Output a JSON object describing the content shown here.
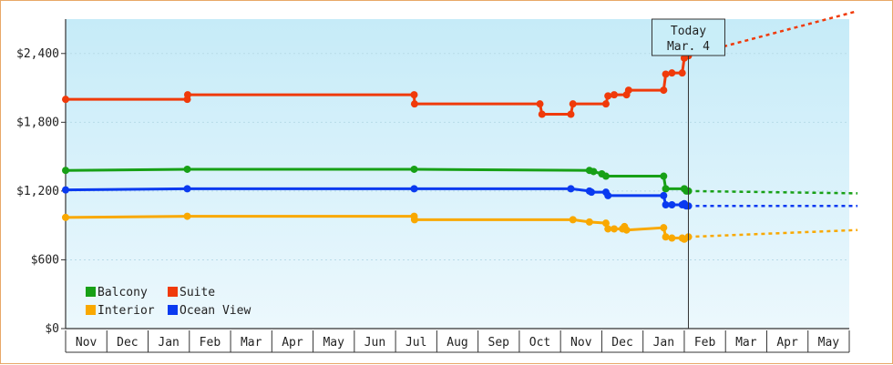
{
  "chart_data": {
    "type": "line",
    "y_ticks": [
      "$0",
      "$600",
      "$1,200",
      "$1,800",
      "$2,400"
    ],
    "ylim": [
      0,
      2700
    ],
    "months": [
      "Nov",
      "Dec",
      "Jan",
      "Feb",
      "Mar",
      "Apr",
      "May",
      "Jun",
      "Jul",
      "Aug",
      "Sep",
      "Oct",
      "Nov",
      "Dec",
      "Jan",
      "Feb",
      "Mar",
      "Apr",
      "May"
    ],
    "x_range": [
      0,
      19
    ],
    "today": {
      "line1": "Today",
      "line2": "Mar. 4",
      "x": 15.1
    },
    "legend": {
      "placement": "bottom-left"
    },
    "series": [
      {
        "name": "Balcony",
        "color": "#17a016",
        "points": [
          [
            0,
            1380
          ],
          [
            2.95,
            1390
          ],
          [
            8.45,
            1390
          ],
          [
            12.7,
            1380
          ],
          [
            12.8,
            1370
          ],
          [
            13.0,
            1350
          ],
          [
            13.1,
            1330
          ],
          [
            14.5,
            1330
          ],
          [
            14.55,
            1220
          ],
          [
            15.0,
            1220
          ],
          [
            15.05,
            1200
          ],
          [
            15.1,
            1200
          ]
        ],
        "projection": [
          [
            15.1,
            1200
          ],
          [
            19.2,
            1180
          ]
        ]
      },
      {
        "name": "Suite",
        "color": "#f03a0a",
        "points": [
          [
            0,
            2000
          ],
          [
            2.95,
            2000
          ],
          [
            2.96,
            2040
          ],
          [
            8.45,
            2040
          ],
          [
            8.46,
            1960
          ],
          [
            11.5,
            1960
          ],
          [
            11.55,
            1870
          ],
          [
            12.25,
            1870
          ],
          [
            12.3,
            1960
          ],
          [
            13.1,
            1960
          ],
          [
            13.15,
            2030
          ],
          [
            13.3,
            2040
          ],
          [
            13.6,
            2040
          ],
          [
            13.65,
            2080
          ],
          [
            14.5,
            2080
          ],
          [
            14.55,
            2220
          ],
          [
            14.7,
            2230
          ],
          [
            14.95,
            2230
          ],
          [
            15.0,
            2360
          ],
          [
            15.1,
            2380
          ]
        ],
        "projection": [
          [
            15.1,
            2380
          ],
          [
            19.2,
            2770
          ]
        ]
      },
      {
        "name": "Interior",
        "color": "#f9a800",
        "points": [
          [
            0,
            970
          ],
          [
            2.95,
            980
          ],
          [
            8.45,
            980
          ],
          [
            8.46,
            950
          ],
          [
            12.3,
            950
          ],
          [
            12.7,
            930
          ],
          [
            13.1,
            920
          ],
          [
            13.15,
            870
          ],
          [
            13.3,
            870
          ],
          [
            13.5,
            870
          ],
          [
            13.55,
            890
          ],
          [
            13.6,
            860
          ],
          [
            14.5,
            880
          ],
          [
            14.55,
            800
          ],
          [
            14.7,
            790
          ],
          [
            14.95,
            790
          ],
          [
            15.0,
            780
          ],
          [
            15.1,
            800
          ]
        ],
        "projection": [
          [
            15.1,
            800
          ],
          [
            19.2,
            860
          ]
        ]
      },
      {
        "name": "Ocean View",
        "color": "#0a3af0",
        "points": [
          [
            0,
            1210
          ],
          [
            2.95,
            1220
          ],
          [
            8.45,
            1220
          ],
          [
            12.25,
            1220
          ],
          [
            12.7,
            1200
          ],
          [
            12.75,
            1190
          ],
          [
            13.1,
            1190
          ],
          [
            13.15,
            1160
          ],
          [
            14.5,
            1160
          ],
          [
            14.55,
            1080
          ],
          [
            14.7,
            1080
          ],
          [
            14.95,
            1080
          ],
          [
            15.0,
            1090
          ],
          [
            15.05,
            1070
          ],
          [
            15.1,
            1070
          ]
        ],
        "projection": [
          [
            15.1,
            1070
          ],
          [
            19.2,
            1070
          ]
        ]
      }
    ]
  }
}
